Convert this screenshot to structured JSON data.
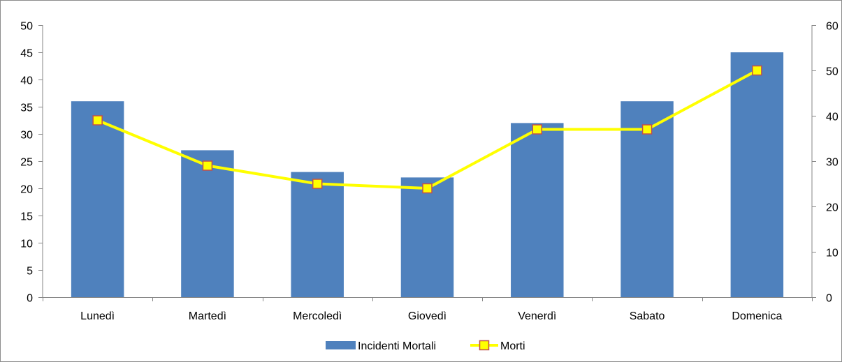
{
  "chart_data": {
    "type": "bar",
    "categories": [
      "Lunedì",
      "Martedì",
      "Mercoledì",
      "Giovedì",
      "Venerdì",
      "Sabato",
      "Domenica"
    ],
    "series": [
      {
        "name": "Incidenti Mortali",
        "type": "bar",
        "axis": "left",
        "color": "#4f81bd",
        "values": [
          36,
          27,
          23,
          22,
          32,
          36,
          45
        ]
      },
      {
        "name": "Morti",
        "type": "line",
        "axis": "right",
        "color": "#ffff00",
        "marker_fill": "#ffff00",
        "marker_border": "#c0504d",
        "values": [
          39,
          29,
          25,
          24,
          37,
          37,
          50
        ]
      }
    ],
    "y_left": {
      "min": 0,
      "max": 50,
      "step": 5
    },
    "y_right": {
      "min": 0,
      "max": 60,
      "step": 10
    },
    "legend_position": "bottom",
    "grid": false,
    "title": "",
    "xlabel": "",
    "ylabel": ""
  }
}
